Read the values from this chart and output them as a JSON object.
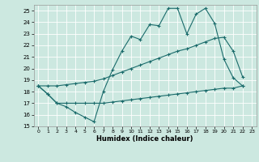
{
  "xlabel": "Humidex (Indice chaleur)",
  "xlim": [
    -0.5,
    23.5
  ],
  "ylim": [
    15,
    25.5
  ],
  "yticks": [
    15,
    16,
    17,
    18,
    19,
    20,
    21,
    22,
    23,
    24,
    25
  ],
  "xticks": [
    0,
    1,
    2,
    3,
    4,
    5,
    6,
    7,
    8,
    9,
    10,
    11,
    12,
    13,
    14,
    15,
    16,
    17,
    18,
    19,
    20,
    21,
    22,
    23
  ],
  "bg_color": "#cce8e0",
  "grid_color": "#ffffff",
  "line_color": "#1a6b6b",
  "line1_x": [
    0,
    1,
    2,
    3,
    4,
    5,
    6,
    7,
    8,
    9,
    10,
    11,
    12,
    13,
    14,
    15,
    16,
    17,
    18,
    19,
    20,
    21,
    22
  ],
  "line1_y": [
    18.5,
    17.8,
    17.0,
    16.7,
    16.2,
    15.8,
    15.4,
    18.0,
    19.9,
    21.5,
    22.8,
    22.5,
    23.8,
    23.7,
    25.2,
    25.2,
    23.0,
    24.7,
    25.2,
    23.9,
    20.8,
    19.2,
    18.5
  ],
  "line2_x": [
    0,
    1,
    2,
    3,
    4,
    5,
    6,
    7,
    8,
    9,
    10,
    11,
    12,
    13,
    14,
    15,
    16,
    17,
    18,
    19,
    20,
    21,
    22
  ],
  "line2_y": [
    18.5,
    18.5,
    18.5,
    18.6,
    18.7,
    18.8,
    18.9,
    19.1,
    19.4,
    19.7,
    20.0,
    20.3,
    20.6,
    20.9,
    21.2,
    21.5,
    21.7,
    22.0,
    22.3,
    22.6,
    22.7,
    21.5,
    19.3
  ],
  "line3_x": [
    0,
    1,
    2,
    3,
    4,
    5,
    6,
    7,
    8,
    9,
    10,
    11,
    12,
    13,
    14,
    15,
    16,
    17,
    18,
    19,
    20,
    21,
    22
  ],
  "line3_y": [
    18.5,
    17.8,
    17.0,
    17.0,
    17.0,
    17.0,
    17.0,
    17.0,
    17.1,
    17.2,
    17.3,
    17.4,
    17.5,
    17.6,
    17.7,
    17.8,
    17.9,
    18.0,
    18.1,
    18.2,
    18.3,
    18.3,
    18.5
  ]
}
